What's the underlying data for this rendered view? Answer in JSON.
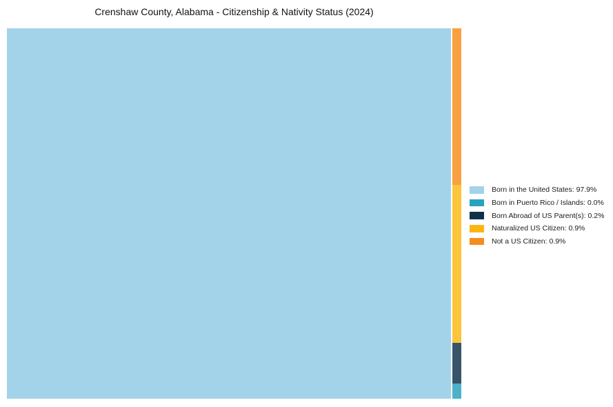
{
  "title": "Crenshaw County, Alabama - Citizenship & Nativity Status (2024)",
  "chart_data": {
    "type": "treemap",
    "title": "Crenshaw County, Alabama - Citizenship & Nativity Status (2024)",
    "categories": [
      "Born in the United States",
      "Born in Puerto Rico / Islands",
      "Born Abroad of US Parent(s)",
      "Naturalized US Citizen",
      "Not a US Citizen"
    ],
    "values": [
      97.9,
      0.0,
      0.2,
      0.9,
      0.9
    ],
    "value_unit": "%",
    "legend_position": "right",
    "layout_hint": "single large block at left for majority category; thin right column stacked top-to-bottom: Not a US Citizen, Naturalized US Citizen, Born Abroad of US Parent(s), Born in Puerto Rico / Islands",
    "segments": [
      {
        "id": "born_us",
        "label": "Born in the United States",
        "value_pct": 97.9,
        "legend_label": "Born in the United States: 97.9%",
        "color": "#A3D3E9",
        "block_color": "#A3D3E9"
      },
      {
        "id": "puerto_rico",
        "label": "Born in Puerto Rico / Islands",
        "value_pct": 0.0,
        "legend_label": "Born in Puerto Rico / Islands: 0.0%",
        "color": "#29A3BC",
        "block_color": "#4DB2C8"
      },
      {
        "id": "born_abroad",
        "label": "Born Abroad of US Parent(s)",
        "value_pct": 0.2,
        "legend_label": "Born Abroad of US Parent(s): 0.2%",
        "color": "#0E3149",
        "block_color": "#375469"
      },
      {
        "id": "naturalized",
        "label": "Naturalized US Citizen",
        "value_pct": 0.9,
        "legend_label": "Naturalized US Citizen: 0.9%",
        "color": "#FCB514",
        "block_color": "#FDC53C"
      },
      {
        "id": "not_citizen",
        "label": "Not a US Citizen",
        "value_pct": 0.9,
        "legend_label": "Not a US Citizen: 0.9%",
        "color": "#F78C1E",
        "block_color": "#F9A041"
      }
    ]
  }
}
